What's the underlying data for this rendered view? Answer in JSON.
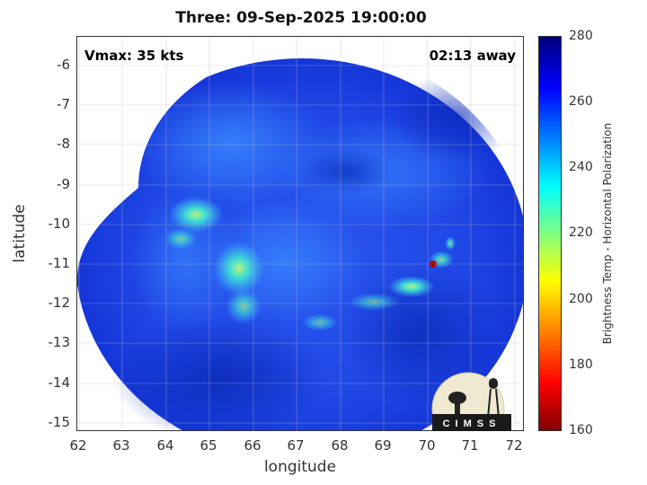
{
  "title": "Three: 09-Sep-2025 19:00:00",
  "annotations": {
    "vmax": "Vmax: 35 kts",
    "away": "02:13 away"
  },
  "axes": {
    "xlabel": "longitude",
    "ylabel": "latitude",
    "xticks": [
      "62",
      "63",
      "64",
      "65",
      "66",
      "67",
      "68",
      "69",
      "70",
      "71",
      "72"
    ],
    "yticks": [
      "-6",
      "-7",
      "-8",
      "-9",
      "-10",
      "-11",
      "-12",
      "-13",
      "-14",
      "-15"
    ],
    "xlim": [
      62,
      72.2
    ],
    "ylim": [
      -15.2,
      -5.3
    ]
  },
  "colorbar": {
    "label": "Brightness Temp - Horizontal Polarization",
    "ticks": [
      "280",
      "260",
      "240",
      "220",
      "200",
      "180",
      "160"
    ],
    "range": [
      160,
      280
    ]
  },
  "logo": {
    "text": "CIMSS"
  },
  "colors": {
    "background_blue": "#1a3ce0",
    "swath_edge": "#0b2fcf",
    "convection_cyan": "#40e0e0",
    "core_red": "#c00000"
  }
}
